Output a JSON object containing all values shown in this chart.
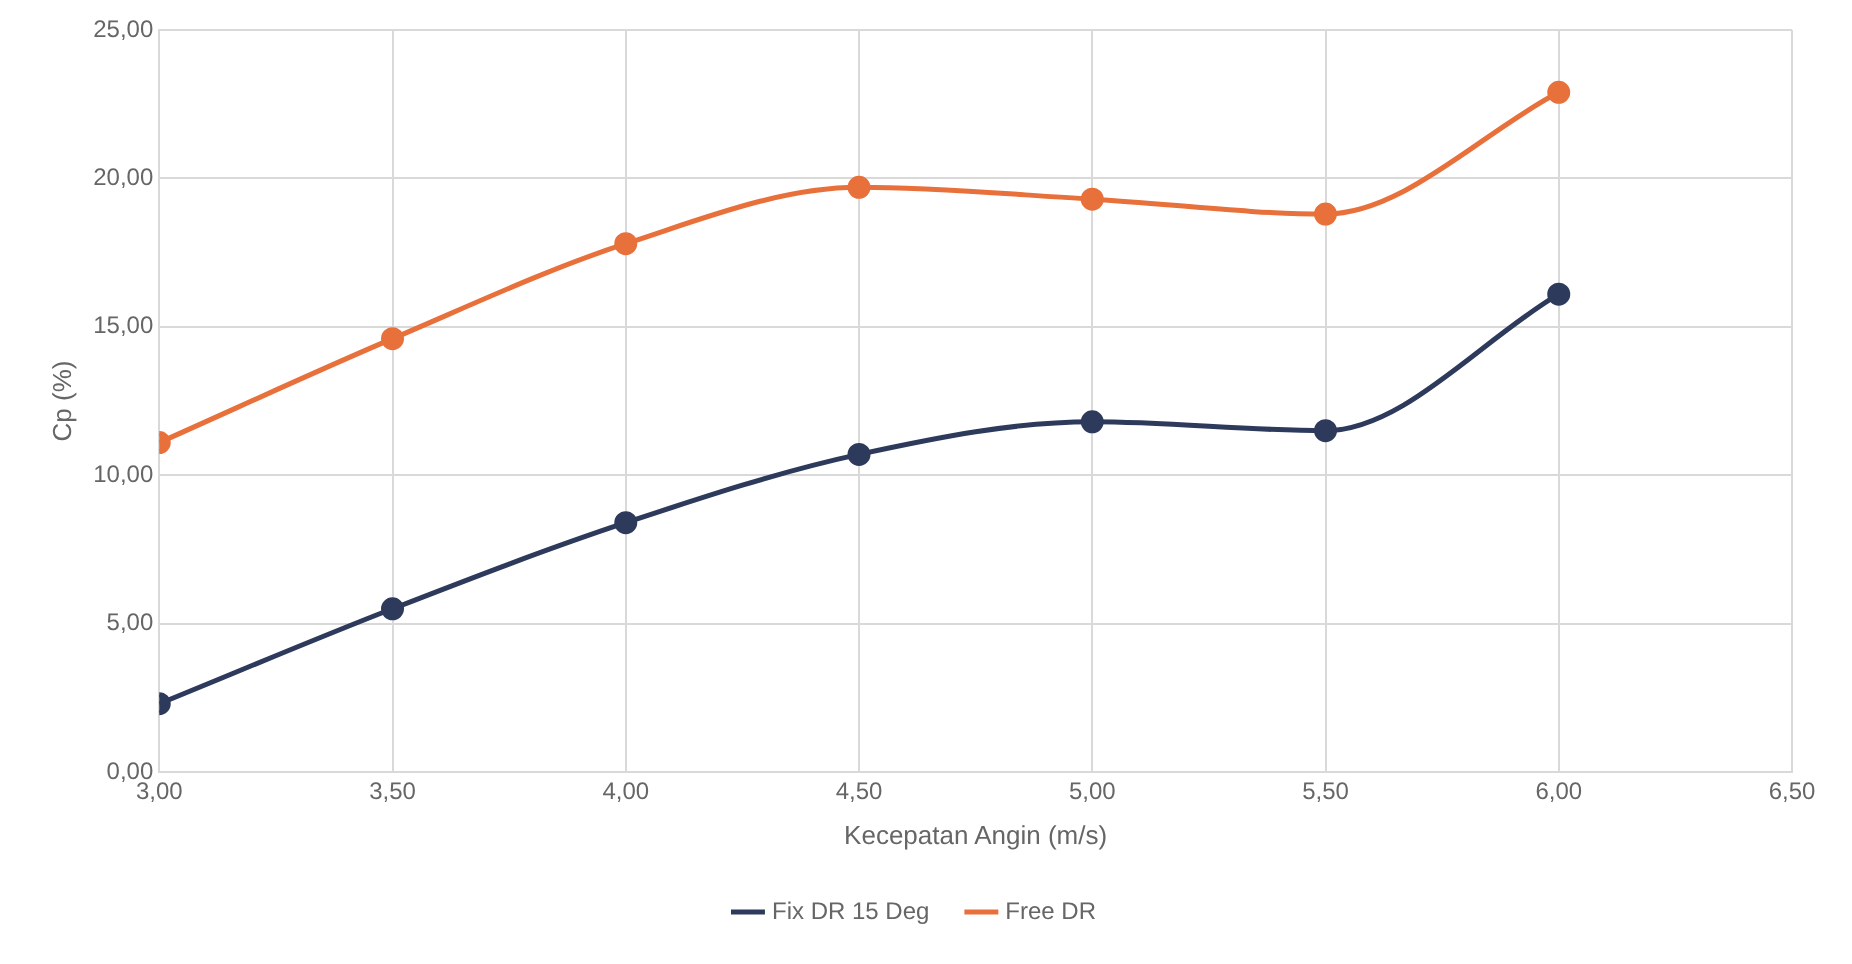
{
  "chart_data": {
    "type": "line",
    "xlabel": "Kecepatan Angin (m/s)",
    "ylabel": "Cp (%)",
    "x": [
      3.0,
      3.5,
      4.0,
      4.5,
      5.0,
      5.5,
      6.0
    ],
    "series": [
      {
        "name": "Fix DR 15 Deg",
        "color": "#2e3a5c",
        "values": [
          2.3,
          5.5,
          8.4,
          10.7,
          11.8,
          11.5,
          16.1
        ]
      },
      {
        "name": "Free DR",
        "color": "#e8703a",
        "values": [
          11.1,
          14.6,
          17.8,
          19.7,
          19.3,
          18.8,
          22.9
        ]
      }
    ],
    "xlim": [
      3.0,
      6.5
    ],
    "xticks": [
      {
        "value": 3.0,
        "label": "3,00"
      },
      {
        "value": 3.5,
        "label": "3,50"
      },
      {
        "value": 4.0,
        "label": "4,00"
      },
      {
        "value": 4.5,
        "label": "4,50"
      },
      {
        "value": 5.0,
        "label": "5,00"
      },
      {
        "value": 5.5,
        "label": "5,50"
      },
      {
        "value": 6.0,
        "label": "6,00"
      },
      {
        "value": 6.5,
        "label": "6,50"
      }
    ],
    "ylim": [
      0,
      25
    ],
    "yticks": [
      {
        "value": 0,
        "label": "0,00"
      },
      {
        "value": 5,
        "label": "5,00"
      },
      {
        "value": 10,
        "label": "10,00"
      },
      {
        "value": 15,
        "label": "15,00"
      },
      {
        "value": 20,
        "label": "20,00"
      },
      {
        "value": 25,
        "label": "25,00"
      }
    ],
    "grid": true,
    "legend": "bottom",
    "marker": "circle",
    "line_style": "solid"
  }
}
